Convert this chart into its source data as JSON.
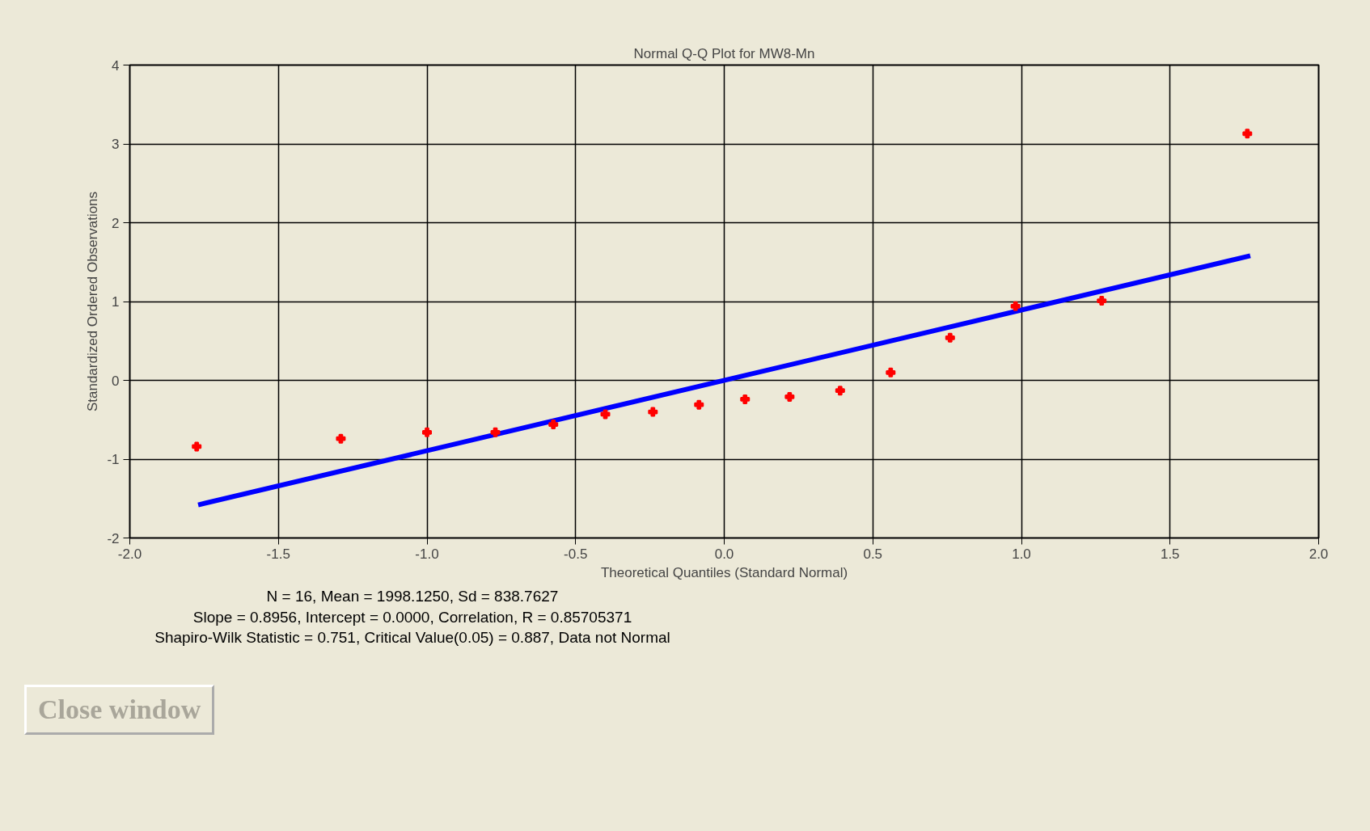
{
  "chart_data": {
    "type": "scatter",
    "title": "Normal Q-Q Plot for MW8-Mn",
    "xlabel": "Theoretical Quantiles (Standard Normal)",
    "ylabel": "Standardized Ordered Observations",
    "x": [
      -1.775,
      -1.29,
      -1.0,
      -0.77,
      -0.575,
      -0.4,
      -0.24,
      -0.085,
      0.07,
      0.22,
      0.39,
      0.56,
      0.76,
      0.98,
      1.27,
      1.76
    ],
    "series": [
      {
        "color": "#ff0000",
        "marker": "cross",
        "values": [
          -0.84,
          -0.74,
          -0.66,
          -0.66,
          -0.56,
          -0.43,
          -0.4,
          -0.31,
          -0.24,
          -0.21,
          -0.13,
          0.1,
          0.54,
          0.94,
          1.01,
          3.13
        ]
      },
      {
        "type": "line",
        "color": "#0000ff",
        "x": [
          -1.77,
          1.77
        ],
        "values": [
          -1.58,
          1.58
        ]
      }
    ],
    "xlim": [
      -2.0,
      2.0
    ],
    "ylim": [
      -2,
      4
    ],
    "xticks": [
      {
        "value": -2,
        "label": "-2.0"
      },
      {
        "value": -1.5,
        "label": "-1.5"
      },
      {
        "value": -1,
        "label": "-1.0"
      },
      {
        "value": -0.5,
        "label": "-0.5"
      },
      {
        "value": 0,
        "label": "0.0"
      },
      {
        "value": 0.5,
        "label": "0.5"
      },
      {
        "value": 1,
        "label": "1.0"
      },
      {
        "value": 1.5,
        "label": "1.5"
      },
      {
        "value": 2,
        "label": "2.0"
      }
    ],
    "yticks": [
      -2,
      -1,
      0,
      1,
      2,
      3,
      4
    ],
    "grid": true,
    "annotations": [
      "N = 16,  Mean = 1998.1250,  Sd = 838.7627",
      "Slope = 0.8956,  Intercept = 0.0000,  Correlation, R = 0.85705371",
      "Shapiro-Wilk Statistic = 0.751,  Critical Value(0.05) = 0.887,  Data not Normal",
      "Close window"
    ]
  }
}
